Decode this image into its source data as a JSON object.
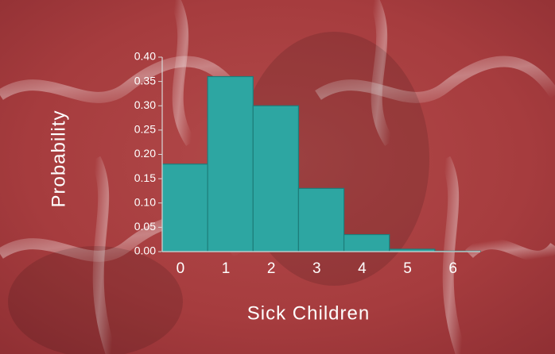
{
  "chart_data": {
    "type": "bar",
    "xlabel": "Sick Children",
    "ylabel": "Probability",
    "categories": [
      "0",
      "1",
      "2",
      "3",
      "4",
      "5",
      "6"
    ],
    "values": [
      0.18,
      0.36,
      0.3,
      0.13,
      0.035,
      0.005,
      0.001
    ],
    "color": "#2da6a2",
    "ylim": [
      0,
      0.4
    ],
    "yticks": [
      {
        "value": 0,
        "label": "0.00"
      },
      {
        "value": 0.05,
        "label": "0.05"
      },
      {
        "value": 0.1,
        "label": "0.10"
      },
      {
        "value": 0.15,
        "label": "0.15"
      },
      {
        "value": 0.2,
        "label": "0.20"
      },
      {
        "value": 0.25,
        "label": "0.25"
      },
      {
        "value": 0.3,
        "label": "0.30"
      },
      {
        "value": 0.35,
        "label": "0.35"
      },
      {
        "value": 0.4,
        "label": "0.40"
      }
    ]
  }
}
